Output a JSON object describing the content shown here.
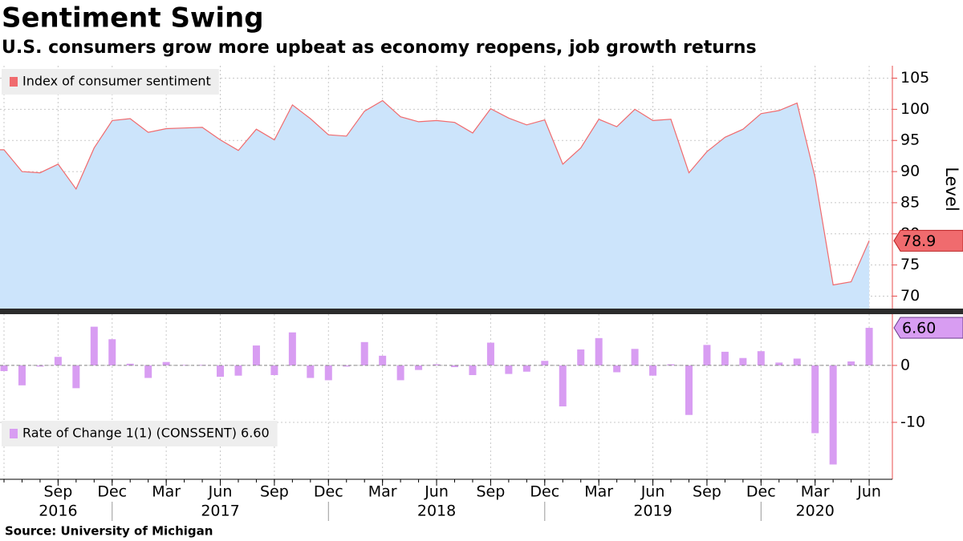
{
  "header": {
    "title": "Sentiment Swing",
    "subtitle": "U.S. consumers grow more upbeat as economy reopens, job growth returns"
  },
  "source": "Source: University of Michigan",
  "chart_data": [
    {
      "type": "area",
      "y_label": "Level",
      "x": [
        "2016-06",
        "2016-07",
        "2016-08",
        "2016-09",
        "2016-10",
        "2016-11",
        "2016-12",
        "2017-01",
        "2017-02",
        "2017-03",
        "2017-04",
        "2017-05",
        "2017-06",
        "2017-07",
        "2017-08",
        "2017-09",
        "2017-10",
        "2017-11",
        "2017-12",
        "2018-01",
        "2018-02",
        "2018-03",
        "2018-04",
        "2018-05",
        "2018-06",
        "2018-07",
        "2018-08",
        "2018-09",
        "2018-10",
        "2018-11",
        "2018-12",
        "2019-01",
        "2019-02",
        "2019-03",
        "2019-04",
        "2019-05",
        "2019-06",
        "2019-07",
        "2019-08",
        "2019-09",
        "2019-10",
        "2019-11",
        "2019-12",
        "2020-01",
        "2020-02",
        "2020-03",
        "2020-04",
        "2020-05",
        "2020-06"
      ],
      "series": [
        {
          "name": "Index of consumer sentiment",
          "color": "#f06b6e",
          "fill": "#cce4fb",
          "values": [
            93.5,
            90.0,
            89.8,
            91.2,
            87.2,
            93.8,
            98.2,
            98.5,
            96.3,
            96.9,
            97.0,
            97.1,
            95.1,
            93.4,
            96.8,
            95.1,
            100.7,
            98.5,
            95.9,
            95.7,
            99.7,
            101.4,
            98.8,
            98.0,
            98.2,
            97.9,
            96.2,
            100.1,
            98.6,
            97.5,
            98.3,
            91.2,
            93.8,
            98.4,
            97.2,
            100.0,
            98.2,
            98.4,
            89.8,
            93.2,
            95.5,
            96.8,
            99.3,
            99.8,
            101.0,
            89.1,
            71.8,
            72.3,
            78.9
          ]
        }
      ],
      "ylim": [
        68,
        107
      ],
      "yticks": [
        70,
        75,
        80,
        85,
        90,
        95,
        100,
        105
      ],
      "grid": true,
      "axis_color": "#e84c4c",
      "legend": "upper left"
    },
    {
      "type": "bar",
      "x": [
        "2016-06",
        "2016-07",
        "2016-08",
        "2016-09",
        "2016-10",
        "2016-11",
        "2016-12",
        "2017-01",
        "2017-02",
        "2017-03",
        "2017-04",
        "2017-05",
        "2017-06",
        "2017-07",
        "2017-08",
        "2017-09",
        "2017-10",
        "2017-11",
        "2017-12",
        "2018-01",
        "2018-02",
        "2018-03",
        "2018-04",
        "2018-05",
        "2018-06",
        "2018-07",
        "2018-08",
        "2018-09",
        "2018-10",
        "2018-11",
        "2018-12",
        "2019-01",
        "2019-02",
        "2019-03",
        "2019-04",
        "2019-05",
        "2019-06",
        "2019-07",
        "2019-08",
        "2019-09",
        "2019-10",
        "2019-11",
        "2019-12",
        "2020-01",
        "2020-02",
        "2020-03",
        "2020-04",
        "2020-05",
        "2020-06"
      ],
      "series": [
        {
          "name": "Rate of Change 1(1) (CONSSENT) 6.60",
          "color": "#d89df2",
          "values": [
            -1.0,
            -3.5,
            -0.2,
            1.5,
            -4.0,
            6.8,
            4.6,
            0.3,
            -2.2,
            0.6,
            0.1,
            0.1,
            -2.0,
            -1.8,
            3.5,
            -1.7,
            5.8,
            -2.2,
            -2.6,
            -0.2,
            4.1,
            1.7,
            -2.6,
            -0.8,
            0.2,
            -0.3,
            -1.7,
            4.0,
            -1.5,
            -1.1,
            0.8,
            -7.2,
            2.8,
            4.8,
            -1.2,
            2.9,
            -1.8,
            0.2,
            -8.7,
            3.6,
            2.4,
            1.3,
            2.5,
            0.5,
            1.2,
            -11.9,
            -17.4,
            0.7,
            6.6
          ],
          "value_labels": [
            null,
            null,
            null,
            null,
            null,
            null,
            null,
            null,
            null,
            null,
            null,
            null,
            null,
            null,
            null,
            null,
            null,
            null,
            null,
            null,
            null,
            null,
            null,
            null,
            null,
            null,
            null,
            null,
            null,
            null,
            null,
            null,
            null,
            null,
            null,
            null,
            null,
            null,
            null,
            null,
            null,
            null,
            null,
            null,
            null,
            null,
            null,
            null,
            "6.60"
          ]
        }
      ],
      "ylim": [
        -20,
        9
      ],
      "yticks": [
        -10,
        0
      ],
      "grid": true,
      "axis_color": "#e84c4c",
      "legend": "lower left",
      "xticks": [
        {
          "value": "2016-09",
          "label": "Sep"
        },
        {
          "value": "2016-12",
          "label": "Dec"
        },
        {
          "value": "2017-03",
          "label": "Mar"
        },
        {
          "value": "2017-06",
          "label": "Jun"
        },
        {
          "value": "2017-09",
          "label": "Sep"
        },
        {
          "value": "2017-12",
          "label": "Dec"
        },
        {
          "value": "2018-03",
          "label": "Mar"
        },
        {
          "value": "2018-06",
          "label": "Jun"
        },
        {
          "value": "2018-09",
          "label": "Sep"
        },
        {
          "value": "2018-12",
          "label": "Dec"
        },
        {
          "value": "2019-03",
          "label": "Mar"
        },
        {
          "value": "2019-06",
          "label": "Jun"
        },
        {
          "value": "2019-09",
          "label": "Sep"
        },
        {
          "value": "2019-12",
          "label": "Dec"
        },
        {
          "value": "2020-03",
          "label": "Mar"
        },
        {
          "value": "2020-06",
          "label": "Jun"
        }
      ],
      "year_ticks": [
        {
          "value": "2016-09",
          "label": "2016"
        },
        {
          "value": "2017-06",
          "label": "2017"
        },
        {
          "value": "2018-06",
          "label": "2018"
        },
        {
          "value": "2019-06",
          "label": "2019"
        },
        {
          "value": "2020-03",
          "label": "2020"
        }
      ]
    }
  ]
}
